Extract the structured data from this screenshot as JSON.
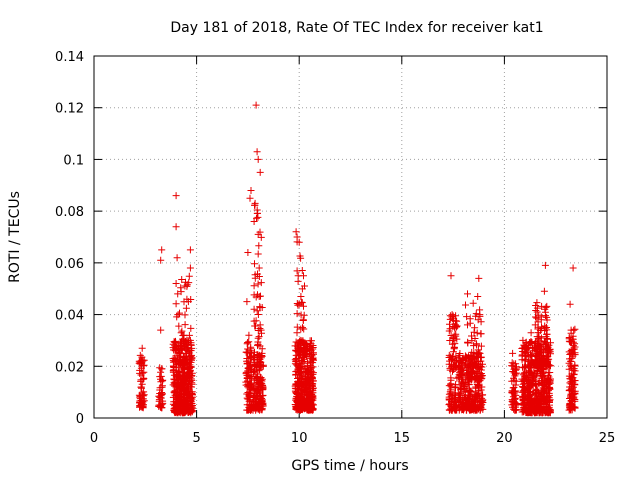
{
  "chart_data": {
    "type": "scatter",
    "title": "Day 181 of 2018, Rate Of TEC Index for receiver kat1",
    "xlabel": "GPS time / hours",
    "ylabel": "ROTI / TECUs",
    "xlim": [
      0,
      25
    ],
    "ylim": [
      0,
      0.14
    ],
    "grid": true,
    "xticks": [
      0,
      5,
      10,
      15,
      20,
      25
    ],
    "xtick_labels": [
      "0",
      "5",
      "10",
      "15",
      "20",
      "25"
    ],
    "yticks": [
      0,
      0.02,
      0.04,
      0.06,
      0.08,
      0.1,
      0.12,
      0.14
    ],
    "ytick_labels": [
      "0",
      "0.02",
      "0.04",
      "0.06",
      "0.08",
      "0.1",
      "0.12",
      "0.14"
    ],
    "marker": "+",
    "color": "#e60000",
    "series": [
      {
        "name": "kat1",
        "points": [
          [
            2.3,
            0.006
          ],
          [
            2.3,
            0.012
          ],
          [
            2.3,
            0.022
          ],
          [
            2.35,
            0.009
          ],
          [
            2.35,
            0.027
          ],
          [
            2.4,
            0.015
          ],
          [
            2.4,
            0.004
          ],
          [
            3.2,
            0.016
          ],
          [
            3.2,
            0.008
          ],
          [
            3.25,
            0.034
          ],
          [
            3.25,
            0.061
          ],
          [
            3.3,
            0.065
          ],
          [
            3.3,
            0.004
          ],
          [
            3.3,
            0.019
          ],
          [
            3.9,
            0.01
          ],
          [
            3.95,
            0.004
          ],
          [
            4.0,
            0.086
          ],
          [
            4.0,
            0.074
          ],
          [
            4.0,
            0.052
          ],
          [
            4.05,
            0.062
          ],
          [
            4.1,
            0.04
          ],
          [
            4.1,
            0.028
          ],
          [
            4.15,
            0.018
          ],
          [
            4.2,
            0.008
          ],
          [
            4.25,
            0.033
          ],
          [
            4.3,
            0.022
          ],
          [
            4.35,
            0.013
          ],
          [
            4.4,
            0.006
          ],
          [
            4.5,
            0.027
          ],
          [
            4.55,
            0.016
          ],
          [
            4.6,
            0.045
          ],
          [
            4.6,
            0.009
          ],
          [
            4.7,
            0.065
          ],
          [
            4.7,
            0.058
          ],
          [
            4.7,
            0.03
          ],
          [
            4.75,
            0.012
          ],
          [
            7.45,
            0.045
          ],
          [
            7.45,
            0.023
          ],
          [
            7.5,
            0.064
          ],
          [
            7.5,
            0.013
          ],
          [
            7.55,
            0.032
          ],
          [
            7.6,
            0.007
          ],
          [
            7.6,
            0.085
          ],
          [
            7.65,
            0.088
          ],
          [
            7.8,
            0.076
          ],
          [
            7.85,
            0.083
          ],
          [
            7.9,
            0.121
          ],
          [
            7.95,
            0.103
          ],
          [
            8.0,
            0.1
          ],
          [
            8.0,
            0.071
          ],
          [
            8.05,
            0.058
          ],
          [
            8.05,
            0.047
          ],
          [
            8.1,
            0.095
          ],
          [
            8.1,
            0.036
          ],
          [
            8.15,
            0.024
          ],
          [
            8.2,
            0.015
          ],
          [
            8.2,
            0.007
          ],
          [
            9.85,
            0.072
          ],
          [
            9.9,
            0.07
          ],
          [
            9.95,
            0.055
          ],
          [
            10.0,
            0.068
          ],
          [
            10.0,
            0.044
          ],
          [
            10.05,
            0.03
          ],
          [
            10.1,
            0.02
          ],
          [
            10.1,
            0.012
          ],
          [
            10.15,
            0.006
          ],
          [
            10.2,
            0.038
          ],
          [
            10.25,
            0.024
          ],
          [
            10.3,
            0.016
          ],
          [
            10.4,
            0.01
          ],
          [
            10.5,
            0.027
          ],
          [
            10.55,
            0.018
          ],
          [
            10.6,
            0.009
          ],
          [
            17.4,
            0.055
          ],
          [
            17.45,
            0.04
          ],
          [
            17.5,
            0.03
          ],
          [
            17.55,
            0.02
          ],
          [
            17.6,
            0.012
          ],
          [
            17.6,
            0.006
          ],
          [
            17.8,
            0.009
          ],
          [
            18.1,
            0.024
          ],
          [
            18.2,
            0.048
          ],
          [
            18.2,
            0.036
          ],
          [
            18.25,
            0.015
          ],
          [
            18.3,
            0.007
          ],
          [
            18.5,
            0.028
          ],
          [
            18.6,
            0.012
          ],
          [
            18.7,
            0.047
          ],
          [
            18.75,
            0.054
          ],
          [
            18.8,
            0.04
          ],
          [
            18.85,
            0.022
          ],
          [
            18.9,
            0.012
          ],
          [
            18.95,
            0.006
          ],
          [
            20.4,
            0.025
          ],
          [
            20.45,
            0.018
          ],
          [
            20.5,
            0.01
          ],
          [
            20.55,
            0.005
          ],
          [
            20.9,
            0.03
          ],
          [
            21.0,
            0.016
          ],
          [
            21.1,
            0.009
          ],
          [
            21.2,
            0.022
          ],
          [
            21.3,
            0.033
          ],
          [
            21.4,
            0.014
          ],
          [
            21.5,
            0.006
          ],
          [
            21.6,
            0.041
          ],
          [
            21.7,
            0.028
          ],
          [
            21.75,
            0.018
          ],
          [
            21.8,
            0.038
          ],
          [
            21.85,
            0.01
          ],
          [
            21.95,
            0.049
          ],
          [
            22.0,
            0.059
          ],
          [
            22.05,
            0.035
          ],
          [
            22.1,
            0.024
          ],
          [
            22.15,
            0.013
          ],
          [
            22.2,
            0.006
          ],
          [
            23.2,
            0.044
          ],
          [
            23.25,
            0.034
          ],
          [
            23.3,
            0.025
          ],
          [
            23.3,
            0.015
          ],
          [
            23.35,
            0.058
          ],
          [
            23.35,
            0.008
          ],
          [
            23.4,
            0.004
          ]
        ]
      }
    ],
    "dense_bands": [
      {
        "x0": 2.2,
        "x1": 2.45,
        "y0": 0.004,
        "y1": 0.025,
        "n": 60
      },
      {
        "x0": 3.15,
        "x1": 3.35,
        "y0": 0.004,
        "y1": 0.02,
        "n": 35
      },
      {
        "x0": 3.85,
        "x1": 4.8,
        "y0": 0.002,
        "y1": 0.03,
        "n": 420
      },
      {
        "x0": 4.0,
        "x1": 4.75,
        "y0": 0.002,
        "y1": 0.055,
        "n": 90
      },
      {
        "x0": 7.4,
        "x1": 7.7,
        "y0": 0.003,
        "y1": 0.03,
        "n": 90
      },
      {
        "x0": 7.75,
        "x1": 8.25,
        "y0": 0.003,
        "y1": 0.025,
        "n": 150
      },
      {
        "x0": 7.8,
        "x1": 8.2,
        "y0": 0.02,
        "y1": 0.085,
        "n": 60
      },
      {
        "x0": 9.8,
        "x1": 10.7,
        "y0": 0.003,
        "y1": 0.03,
        "n": 420
      },
      {
        "x0": 9.85,
        "x1": 10.3,
        "y0": 0.025,
        "y1": 0.07,
        "n": 40
      },
      {
        "x0": 17.3,
        "x1": 17.7,
        "y0": 0.003,
        "y1": 0.04,
        "n": 120
      },
      {
        "x0": 17.75,
        "x1": 18.95,
        "y0": 0.003,
        "y1": 0.025,
        "n": 280
      },
      {
        "x0": 18.1,
        "x1": 18.9,
        "y0": 0.015,
        "y1": 0.045,
        "n": 70
      },
      {
        "x0": 20.35,
        "x1": 20.6,
        "y0": 0.003,
        "y1": 0.022,
        "n": 60
      },
      {
        "x0": 20.85,
        "x1": 22.25,
        "y0": 0.002,
        "y1": 0.03,
        "n": 520
      },
      {
        "x0": 21.5,
        "x1": 22.1,
        "y0": 0.02,
        "y1": 0.045,
        "n": 90
      },
      {
        "x0": 23.15,
        "x1": 23.45,
        "y0": 0.003,
        "y1": 0.035,
        "n": 110
      }
    ]
  }
}
